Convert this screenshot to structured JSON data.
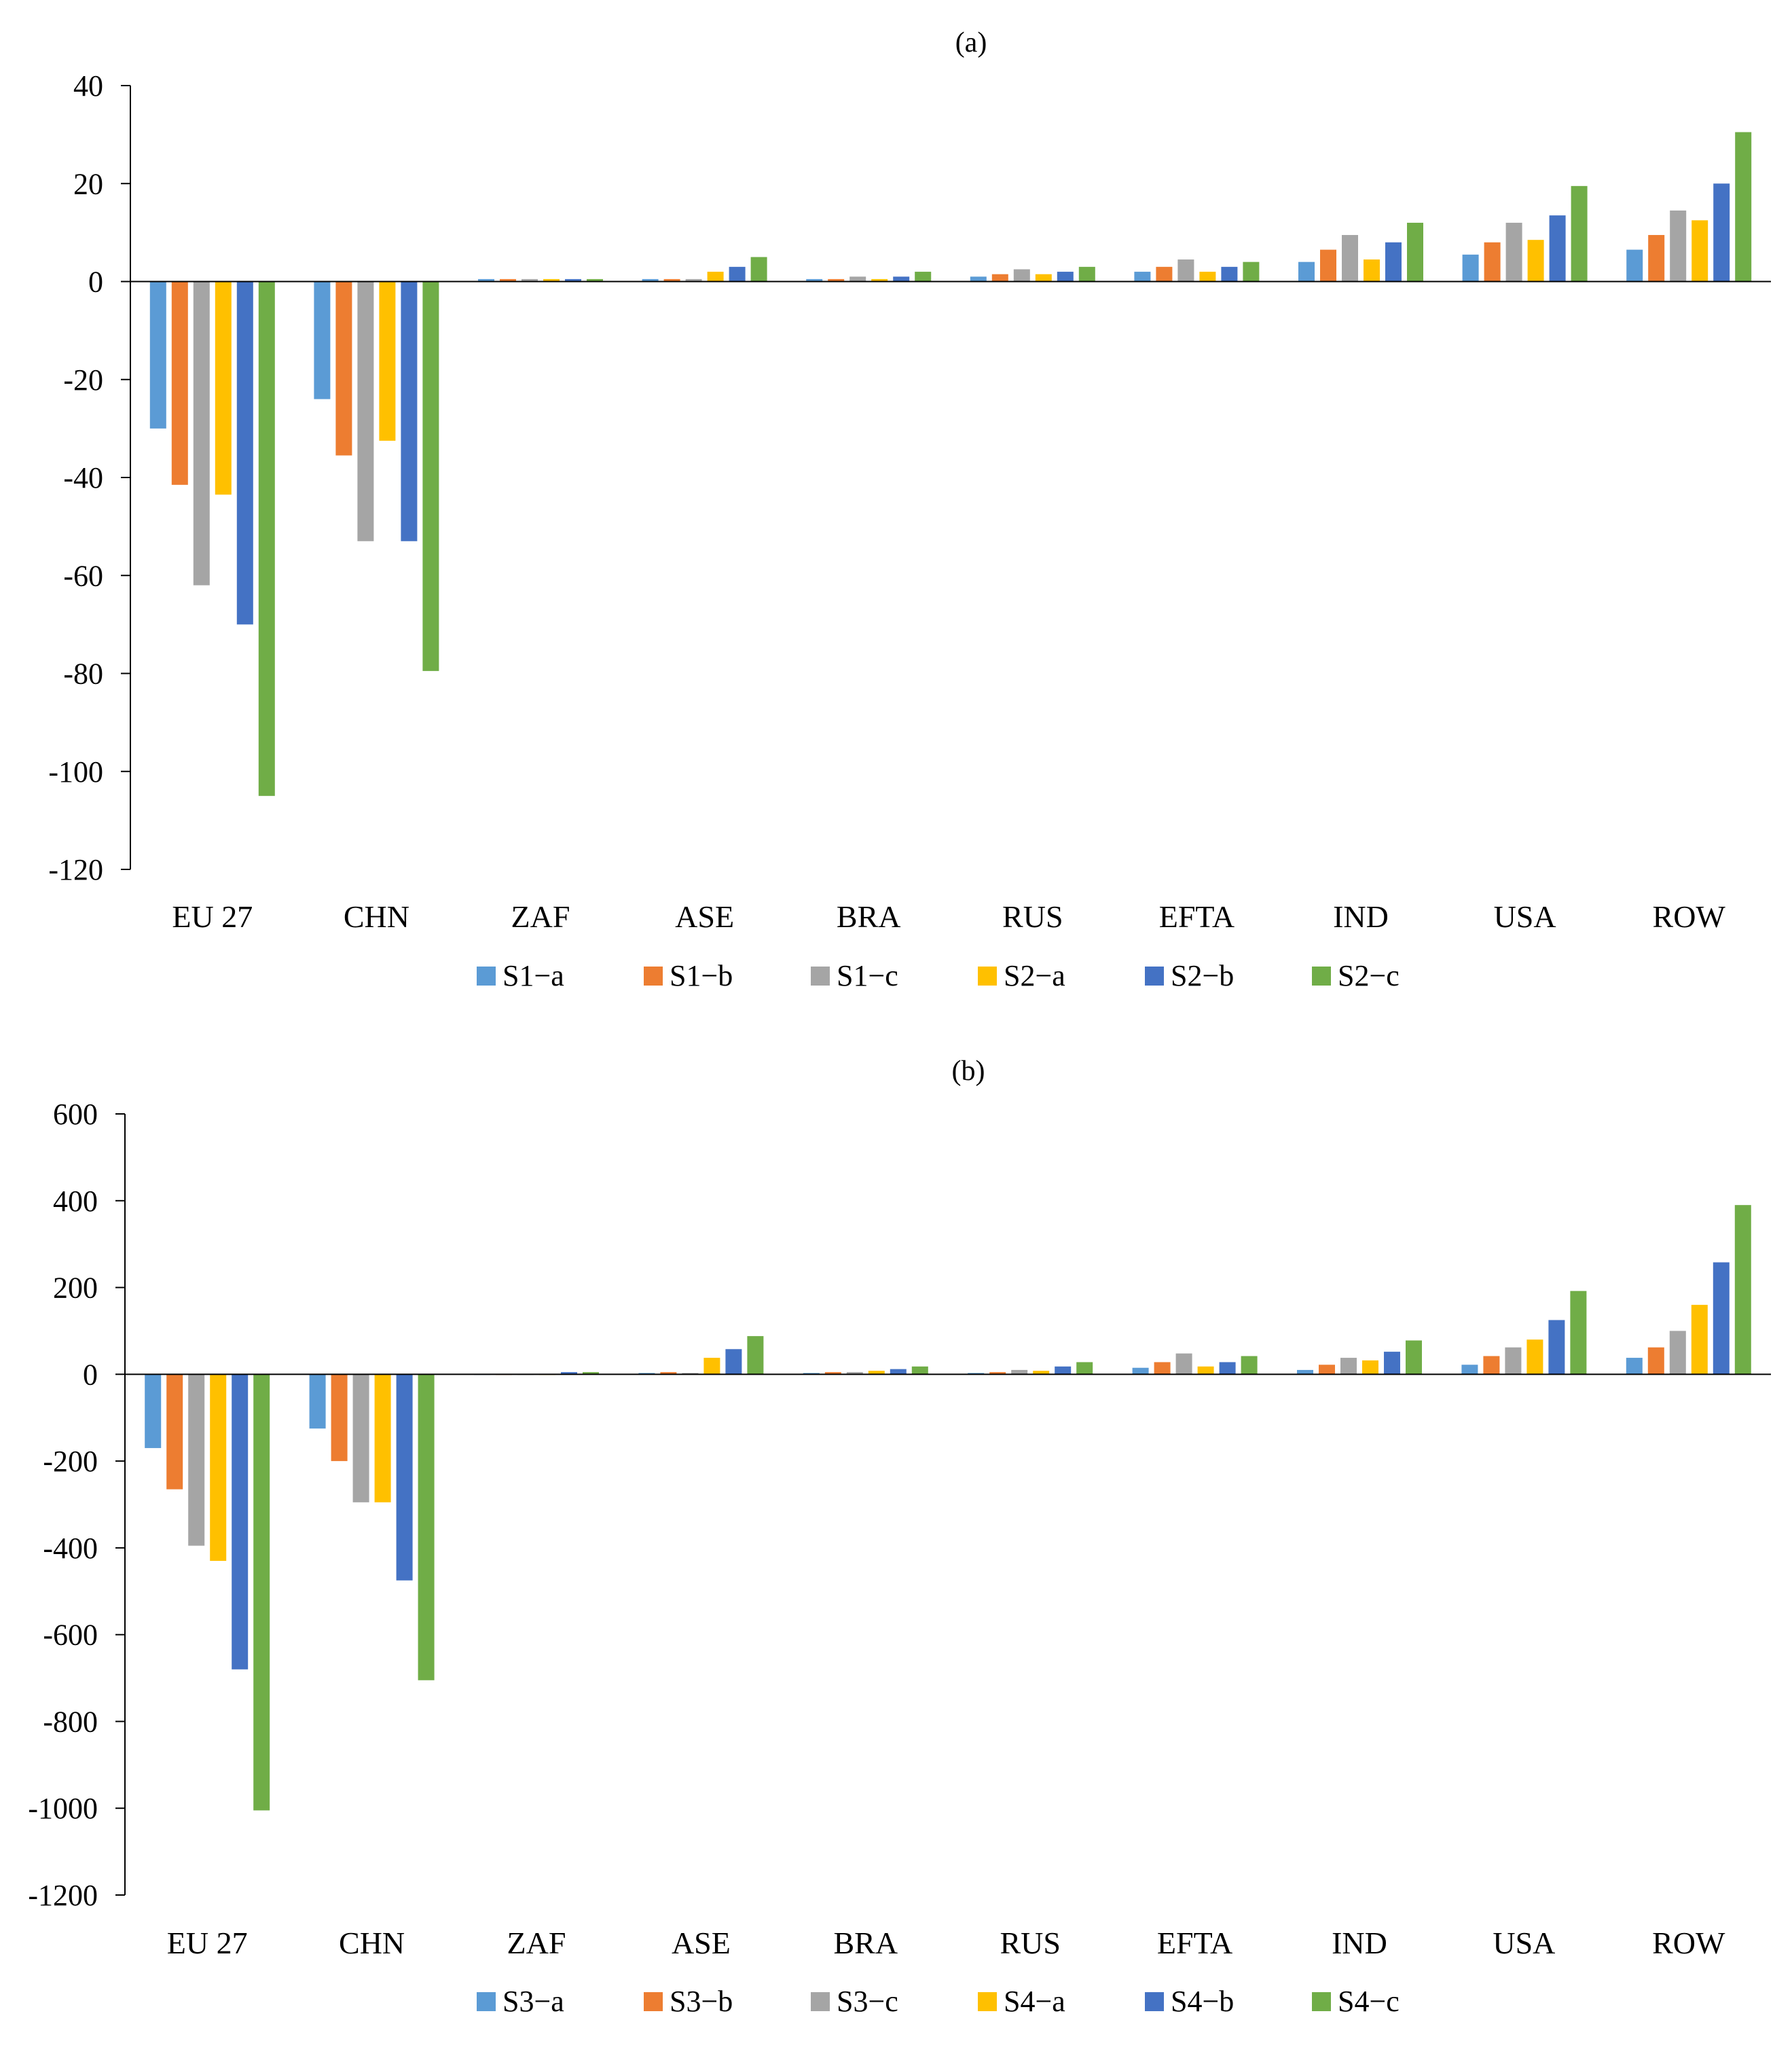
{
  "colors": {
    "axis": "#000000",
    "s_a": "#5b9bd5",
    "s_b": "#ed7d31",
    "s_c": "#a5a5a5",
    "s_d": "#ffc000",
    "s_e": "#4472c4",
    "s_f": "#70ad47"
  },
  "chart_data": [
    {
      "type": "bar",
      "title": "(a)",
      "categories": [
        "EU 27",
        "CHN",
        "ZAF",
        "ASE",
        "BRA",
        "RUS",
        "EFTA",
        "IND",
        "USA",
        "ROW"
      ],
      "ylim": [
        -120,
        40
      ],
      "yticks": [
        40,
        20,
        0,
        -20,
        -40,
        -60,
        -80,
        -100,
        -120
      ],
      "ytick_labels": [
        "40",
        "20",
        "0",
        "-20",
        "-40",
        "-60",
        "-80",
        "-100",
        "-120"
      ],
      "legend": "bottom",
      "grid": false,
      "series": [
        {
          "name": "S1−a",
          "values": [
            -30,
            -24,
            0.5,
            0.5,
            0.5,
            1,
            2,
            4,
            5.5,
            6.5
          ]
        },
        {
          "name": "S1−b",
          "values": [
            -41.5,
            -35.5,
            0.5,
            0.5,
            0.5,
            1.5,
            3,
            6.5,
            8,
            9.5
          ]
        },
        {
          "name": "S1−c",
          "values": [
            -62,
            -53,
            0.5,
            0.5,
            1,
            2.5,
            4.5,
            9.5,
            12,
            14.5
          ]
        },
        {
          "name": "S2−a",
          "values": [
            -43.5,
            -32.5,
            0.5,
            2,
            0.5,
            1.5,
            2,
            4.5,
            8.5,
            12.5
          ]
        },
        {
          "name": "S2−b",
          "values": [
            -70,
            -53,
            0.5,
            3,
            1,
            2,
            3,
            8,
            13.5,
            20
          ]
        },
        {
          "name": "S2−c",
          "values": [
            -105,
            -79.5,
            0.5,
            5,
            2,
            3,
            4,
            12,
            19.5,
            30.5
          ]
        }
      ]
    },
    {
      "type": "bar",
      "title": "(b)",
      "categories": [
        "EU 27",
        "CHN",
        "ZAF",
        "ASE",
        "BRA",
        "RUS",
        "EFTA",
        "IND",
        "USA",
        "ROW"
      ],
      "ylim": [
        -1200,
        600
      ],
      "yticks": [
        600,
        400,
        200,
        0,
        -200,
        -400,
        -600,
        -800,
        -1000,
        -1200
      ],
      "ytick_labels": [
        "600",
        "400",
        "200",
        "0",
        "-200",
        "-400",
        "-600",
        "-800",
        "-1000",
        "-1200"
      ],
      "legend": "bottom",
      "grid": false,
      "series": [
        {
          "name": "S3−a",
          "values": [
            -170,
            -125,
            0,
            3,
            3,
            3,
            15,
            10,
            22,
            38
          ]
        },
        {
          "name": "S3−b",
          "values": [
            -265,
            -200,
            0,
            5,
            5,
            5,
            28,
            22,
            42,
            62
          ]
        },
        {
          "name": "S3−c",
          "values": [
            -395,
            -295,
            0,
            3,
            5,
            10,
            48,
            38,
            62,
            100
          ]
        },
        {
          "name": "S4−a",
          "values": [
            -430,
            -295,
            0,
            38,
            8,
            8,
            18,
            32,
            80,
            160
          ]
        },
        {
          "name": "S4−b",
          "values": [
            -680,
            -475,
            5,
            58,
            12,
            18,
            28,
            52,
            125,
            258
          ]
        },
        {
          "name": "S4−c",
          "values": [
            -1005,
            -705,
            5,
            88,
            18,
            28,
            42,
            78,
            192,
            390
          ]
        }
      ]
    }
  ]
}
